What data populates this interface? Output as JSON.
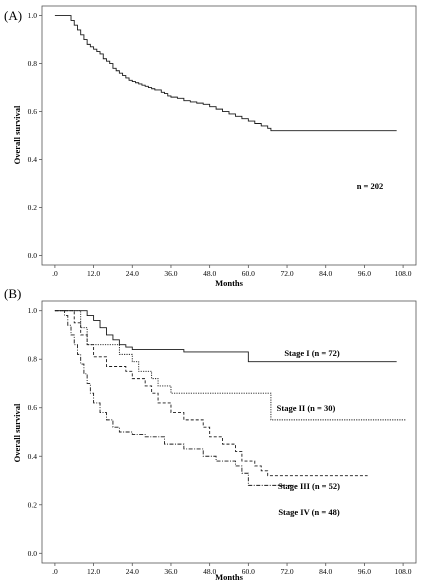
{
  "chart_data": [
    {
      "type": "line",
      "panel_label": "(A)",
      "xlabel": "Months",
      "ylabel": "Overall survival",
      "xlim": [
        -4,
        112
      ],
      "ylim": [
        -0.04,
        1.04
      ],
      "x_ticks": [
        ".0",
        "12.0",
        "24.0",
        "36.0",
        "48.0",
        "60.0",
        "72.0",
        "84.0",
        "96.0",
        "108.0"
      ],
      "y_ticks": [
        "0.0",
        "0.2",
        "0.4",
        "0.6",
        "0.8",
        "1.0"
      ],
      "annotations": [
        "n = 202"
      ],
      "series": [
        {
          "dash": "",
          "x": [
            0,
            4,
            5,
            6,
            7,
            8,
            9,
            10,
            11,
            12,
            13,
            14,
            15,
            16,
            17,
            18,
            19,
            20,
            21,
            22,
            23,
            24,
            25,
            26,
            27,
            28,
            29,
            30,
            31,
            33,
            34,
            35,
            36,
            38,
            40,
            42,
            44,
            46,
            48,
            50,
            52,
            54,
            56,
            58,
            60,
            62,
            64,
            66,
            67,
            106
          ],
          "y": [
            1.0,
            1.0,
            0.98,
            0.96,
            0.94,
            0.92,
            0.9,
            0.88,
            0.87,
            0.86,
            0.85,
            0.84,
            0.82,
            0.81,
            0.8,
            0.78,
            0.77,
            0.76,
            0.75,
            0.74,
            0.73,
            0.725,
            0.72,
            0.715,
            0.71,
            0.705,
            0.7,
            0.695,
            0.69,
            0.68,
            0.675,
            0.665,
            0.66,
            0.655,
            0.645,
            0.64,
            0.635,
            0.63,
            0.62,
            0.61,
            0.6,
            0.59,
            0.58,
            0.57,
            0.56,
            0.55,
            0.54,
            0.53,
            0.52,
            0.52
          ]
        }
      ]
    },
    {
      "type": "line",
      "panel_label": "(B)",
      "xlabel": "Months",
      "ylabel": "Overall survival",
      "xlim": [
        -4,
        112
      ],
      "ylim": [
        -0.04,
        1.04
      ],
      "x_ticks": [
        ".0",
        "12.0",
        "24.0",
        "36.0",
        "48.0",
        "60.0",
        "72.0",
        "84.0",
        "96.0",
        "108.0"
      ],
      "y_ticks": [
        "0.0",
        "0.2",
        "0.4",
        "0.6",
        "0.8",
        "1.0"
      ],
      "annotations": [],
      "series": [
        {
          "name": "Stage I (n = 72)",
          "dash": "",
          "x": [
            0,
            8,
            10,
            12,
            14,
            16,
            18,
            20,
            22,
            24,
            38,
            40,
            60,
            106
          ],
          "y": [
            1.0,
            1.0,
            0.98,
            0.96,
            0.93,
            0.9,
            0.88,
            0.86,
            0.85,
            0.84,
            0.84,
            0.83,
            0.79,
            0.79
          ]
        },
        {
          "name": "Stage II (n = 30)",
          "dash": "1.2,1.2",
          "x": [
            0,
            6,
            8,
            10,
            20,
            24,
            26,
            30,
            32,
            36,
            67,
            67,
            109
          ],
          "y": [
            1.0,
            1.0,
            0.93,
            0.86,
            0.82,
            0.79,
            0.75,
            0.72,
            0.69,
            0.66,
            0.66,
            0.55,
            0.55
          ]
        },
        {
          "name": "Stage III (n = 52)",
          "dash": "3,2",
          "x": [
            0,
            4,
            6,
            8,
            10,
            12,
            16,
            22,
            24,
            28,
            30,
            32,
            36,
            40,
            46,
            48,
            52,
            56,
            58,
            60,
            62,
            64,
            66,
            68,
            97
          ],
          "y": [
            1.0,
            1.0,
            0.95,
            0.9,
            0.86,
            0.81,
            0.77,
            0.75,
            0.72,
            0.69,
            0.66,
            0.62,
            0.58,
            0.55,
            0.52,
            0.48,
            0.45,
            0.42,
            0.38,
            0.38,
            0.36,
            0.34,
            0.32,
            0.32,
            0.32
          ]
        },
        {
          "name": "Stage IV (n = 48)",
          "dash": "4,1.5,1,1.5",
          "x": [
            0,
            3,
            4,
            5,
            6,
            7,
            8,
            9,
            10,
            11,
            12,
            14,
            16,
            18,
            20,
            24,
            28,
            34,
            40,
            46,
            50,
            56,
            58,
            60,
            66,
            70,
            74
          ],
          "y": [
            1.0,
            0.98,
            0.94,
            0.9,
            0.86,
            0.82,
            0.78,
            0.74,
            0.7,
            0.66,
            0.62,
            0.58,
            0.55,
            0.52,
            0.5,
            0.49,
            0.48,
            0.45,
            0.43,
            0.4,
            0.38,
            0.36,
            0.33,
            0.28,
            0.28,
            0.28,
            0.28
          ]
        }
      ]
    }
  ]
}
